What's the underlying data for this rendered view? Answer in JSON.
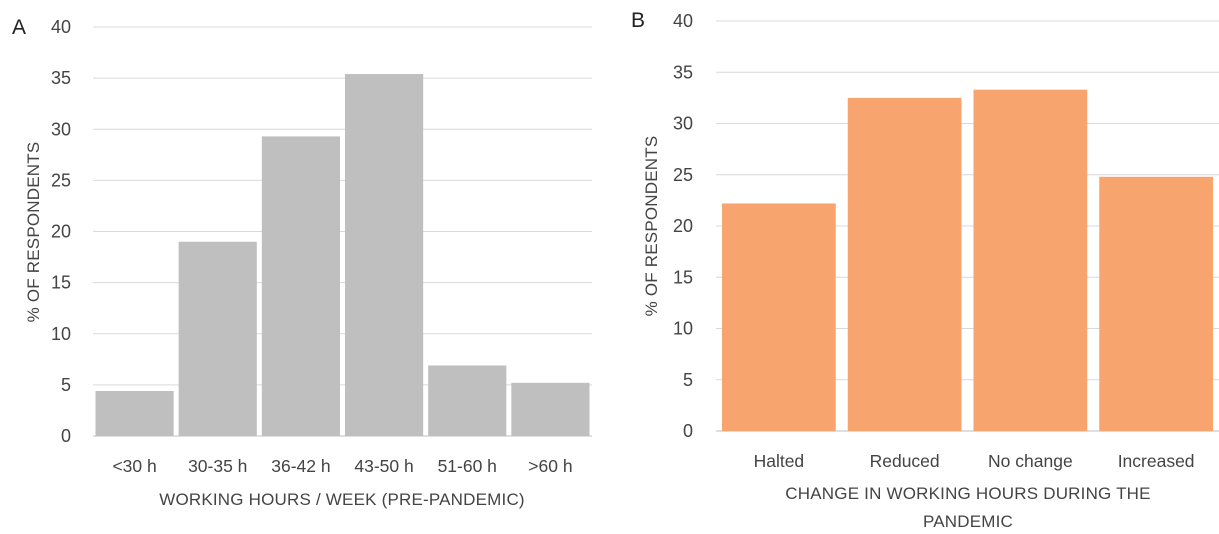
{
  "chart_data": [
    {
      "panel": "A",
      "type": "bar",
      "categories": [
        "<30 h",
        "30-35 h",
        "36-42 h",
        "43-50 h",
        "51-60 h",
        ">60 h"
      ],
      "values": [
        4.4,
        19.0,
        29.3,
        35.4,
        6.9,
        5.2
      ],
      "xlabel": "WORKING HOURS / WEEK (PRE-PANDEMIC)",
      "ylabel": "% OF RESPONDENTS",
      "ylim": [
        0,
        40
      ],
      "yticks": [
        "0",
        "5",
        "10",
        "15",
        "20",
        "25",
        "30",
        "35",
        "40"
      ],
      "grid": true,
      "bar_color": "#bfbfbf"
    },
    {
      "panel": "B",
      "type": "bar",
      "categories": [
        "Halted",
        "Reduced",
        "No change",
        "Increased"
      ],
      "values": [
        22.2,
        32.5,
        33.3,
        24.8
      ],
      "xlabel_lines": [
        "CHANGE IN WORKING HOURS DURING THE",
        "PANDEMIC"
      ],
      "ylabel": "% OF RESPONDENTS",
      "ylim": [
        0,
        40
      ],
      "yticks": [
        "0",
        "5",
        "10",
        "15",
        "20",
        "25",
        "30",
        "35",
        "40"
      ],
      "grid": true,
      "bar_color": "#f8a46e"
    }
  ]
}
